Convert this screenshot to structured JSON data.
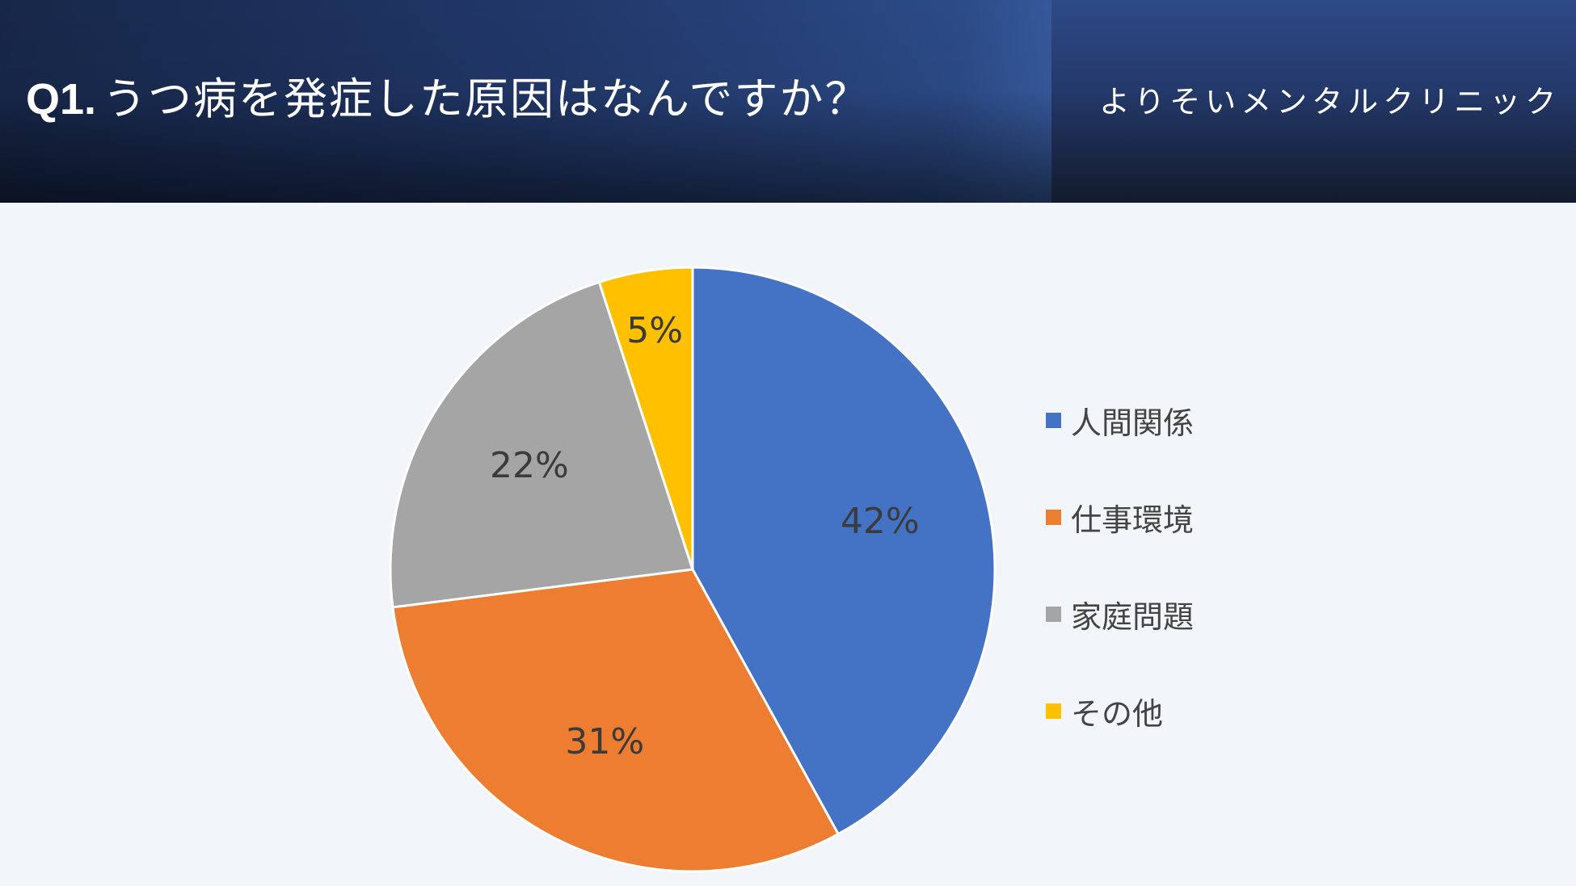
{
  "header": {
    "question_number": "Q1.",
    "question_text": "うつ病を発症した原因はなんですか？",
    "clinic_name": "よりそいメンタルクリニック"
  },
  "colors": {
    "header_dark": "#172749",
    "header_mid": "#2c4b88",
    "background": "#f2f6fa",
    "label_text": "#3b3b3b"
  },
  "chart_data": {
    "type": "pie",
    "title": "",
    "legend_placement": "right",
    "slices": [
      {
        "label": "人間関係",
        "value": 42,
        "display": "42%",
        "color": "#4472c4"
      },
      {
        "label": "仕事環境",
        "value": 31,
        "display": "31%",
        "color": "#ed7d31"
      },
      {
        "label": "家庭問題",
        "value": 22,
        "display": "22%",
        "color": "#a5a5a5"
      },
      {
        "label": "その他",
        "value": 5,
        "display": "5%",
        "color": "#ffc000"
      }
    ]
  }
}
